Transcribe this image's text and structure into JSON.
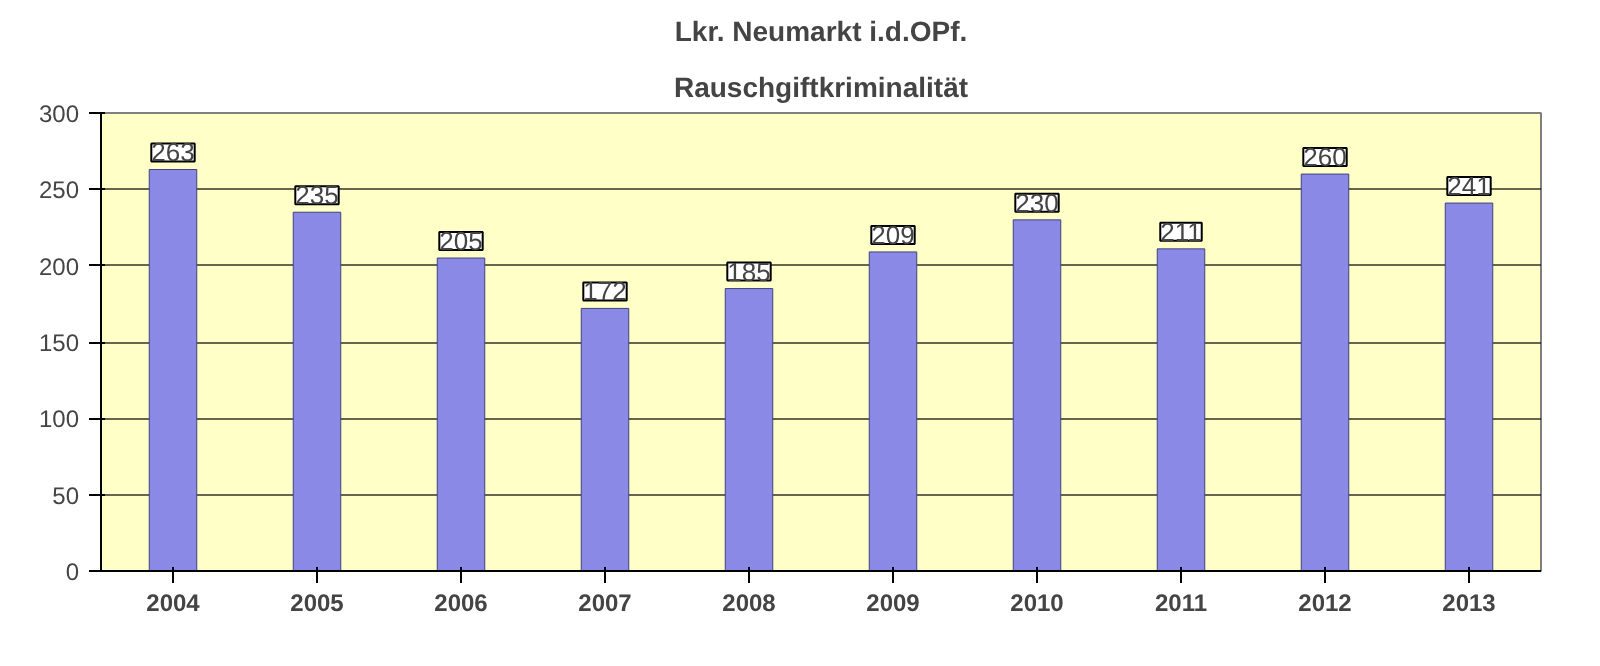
{
  "chart_data": {
    "type": "bar",
    "title": "Lkr. Neumarkt i.d.OPf.",
    "subtitle": "Rauschgiftkriminalität",
    "categories": [
      "2004",
      "2005",
      "2006",
      "2007",
      "2008",
      "2009",
      "2010",
      "2011",
      "2012",
      "2013"
    ],
    "values": [
      263,
      235,
      205,
      172,
      185,
      209,
      230,
      211,
      260,
      241
    ],
    "color": "#8a8ae6",
    "ylim": [
      0,
      300
    ],
    "yticks": [
      0,
      50,
      100,
      150,
      200,
      250,
      300
    ],
    "grid": "y",
    "data_labels": true
  }
}
